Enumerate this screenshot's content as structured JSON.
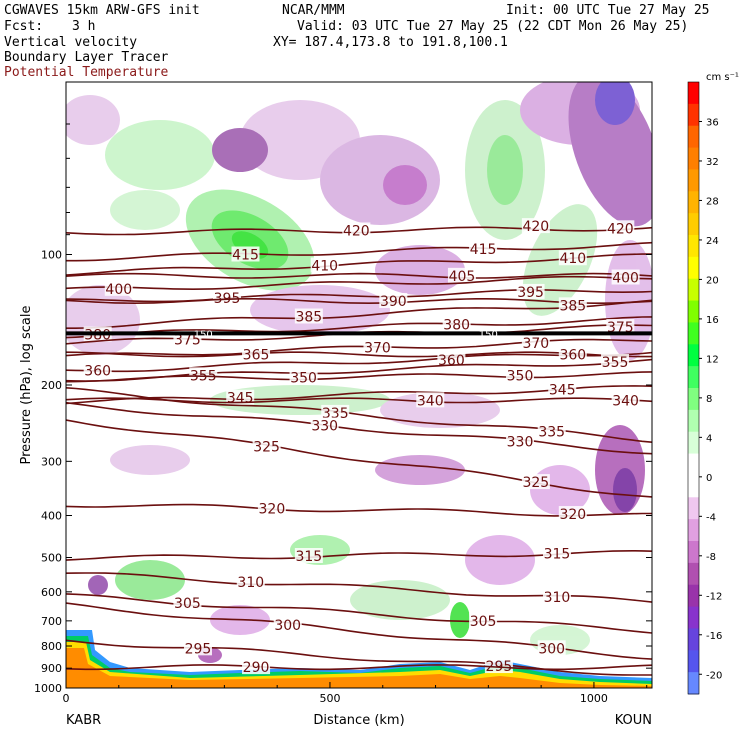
{
  "header": {
    "model": "CGWAVES 15km ARW-GFS init",
    "org": "NCAR/MMM",
    "init": "Init: 00 UTC Tue 27 May 25",
    "fcst_label": "Fcst:",
    "fcst_value": "3 h",
    "valid": "Valid: 03 UTC Tue 27 May 25 (22 CDT Mon 26 May 25)",
    "field1": "Vertical velocity",
    "field2": "Boundary Layer Tracer",
    "field3": "Potential Temperature",
    "xy": "XY= 187.4,173.8 to 191.8,100.1"
  },
  "colors": {
    "isentrope": "#6b0f0f",
    "tropopause": "#000000",
    "terrain": "#ff8c00"
  },
  "chart_data": {
    "type": "heatmap",
    "title": "",
    "xlabel": "Distance (km)",
    "ylabel": "Pressure (hPa), log scale",
    "xlim": [
      0,
      1110
    ],
    "ylim": [
      1000,
      40
    ],
    "y_scale": "log",
    "x_ticks": [
      0,
      500,
      1000
    ],
    "y_ticks": [
      100,
      200,
      300,
      400,
      500,
      600,
      700,
      800,
      900,
      1000
    ],
    "endpoints": {
      "left": "KABR",
      "right": "KOUN"
    },
    "colorbar": {
      "units": "cm s⁻¹",
      "ticks": [
        36,
        32,
        28,
        24,
        20,
        16,
        12,
        8,
        4,
        0,
        -4,
        -8,
        -12,
        -16,
        -20
      ],
      "colors": [
        "#ff0000",
        "#ff3300",
        "#ff6600",
        "#ff7f00",
        "#ff9900",
        "#ffb300",
        "#ffcc00",
        "#ffe600",
        "#ffff00",
        "#c8ff00",
        "#80ff00",
        "#40ff20",
        "#00ff40",
        "#40ff60",
        "#80ff80",
        "#b0ffb0",
        "#d8ffd8",
        "#ffffff",
        "#ffffff",
        "#f0c8f0",
        "#e0a0e0",
        "#cc77cc",
        "#b050b0",
        "#9933aa",
        "#8833cc",
        "#6644dd",
        "#5555ee",
        "#6688ff"
      ]
    },
    "isentropes": [
      {
        "theta": 420,
        "p": 88,
        "labels": [
          [
            550,
            88
          ],
          [
            890,
            86
          ],
          [
            1050,
            87
          ]
        ]
      },
      {
        "theta": 415,
        "p": 100,
        "labels": [
          [
            340,
            100
          ],
          [
            790,
            97
          ]
        ]
      },
      {
        "theta": 410,
        "p": 106,
        "labels": [
          [
            490,
            106
          ],
          [
            960,
            102
          ]
        ]
      },
      {
        "theta": 405,
        "p": 113,
        "labels": [
          [
            750,
            112
          ]
        ]
      },
      {
        "theta": 400,
        "p": 122,
        "labels": [
          [
            100,
            120
          ],
          [
            1060,
            113
          ]
        ]
      },
      {
        "theta": 395,
        "p": 128,
        "labels": [
          [
            305,
            126
          ],
          [
            880,
            122
          ]
        ]
      },
      {
        "theta": 390,
        "p": 130,
        "labels": [
          [
            620,
            128
          ]
        ]
      },
      {
        "theta": 385,
        "p": 140,
        "labels": [
          [
            460,
            139
          ],
          [
            960,
            131
          ]
        ]
      },
      {
        "theta": 380,
        "p": 150,
        "labels": [
          [
            60,
            153
          ],
          [
            740,
            145
          ]
        ]
      },
      {
        "theta": 375,
        "p": 158,
        "labels": [
          [
            230,
            157
          ],
          [
            1050,
            147
          ]
        ]
      },
      {
        "theta": 370,
        "p": 162,
        "labels": [
          [
            590,
            164
          ],
          [
            890,
            160
          ]
        ]
      },
      {
        "theta": 365,
        "p": 170,
        "labels": [
          [
            360,
            170
          ]
        ]
      },
      {
        "theta": 360,
        "p": 180,
        "labels": [
          [
            60,
            185
          ],
          [
            730,
            175
          ],
          [
            960,
            170
          ]
        ]
      },
      {
        "theta": 355,
        "p": 190,
        "labels": [
          [
            260,
            190
          ],
          [
            1040,
            177
          ]
        ]
      },
      {
        "theta": 350,
        "p": 195,
        "labels": [
          [
            450,
            192
          ],
          [
            860,
            190
          ]
        ]
      },
      {
        "theta": 345,
        "p": 213,
        "labels": [
          [
            330,
            214
          ],
          [
            940,
            205
          ]
        ]
      },
      {
        "theta": 340,
        "p": 222,
        "labels": [
          [
            690,
            217
          ],
          [
            1060,
            217
          ]
        ]
      },
      {
        "theta": 335,
        "p": 233,
        "labels": [
          [
            510,
            232
          ],
          [
            920,
            256
          ]
        ]
      },
      {
        "theta": 330,
        "p": 255,
        "labels": [
          [
            490,
            248
          ],
          [
            860,
            270
          ]
        ]
      },
      {
        "theta": 325,
        "p": 285,
        "labels": [
          [
            380,
            277
          ],
          [
            890,
            335
          ]
        ]
      },
      {
        "theta": 320,
        "p": 380,
        "labels": [
          [
            390,
            385
          ],
          [
            960,
            397
          ]
        ]
      },
      {
        "theta": 315,
        "p": 490,
        "labels": [
          [
            460,
            496
          ],
          [
            930,
            490
          ]
        ]
      },
      {
        "theta": 310,
        "p": 580,
        "labels": [
          [
            350,
            570
          ],
          [
            930,
            617
          ]
        ]
      },
      {
        "theta": 305,
        "p": 650,
        "labels": [
          [
            230,
            637
          ],
          [
            790,
            700
          ]
        ]
      },
      {
        "theta": 300,
        "p": 725,
        "labels": [
          [
            420,
            715
          ],
          [
            920,
            810
          ]
        ]
      },
      {
        "theta": 295,
        "p": 820,
        "labels": [
          [
            250,
            810
          ],
          [
            820,
            890
          ]
        ]
      },
      {
        "theta": 290,
        "p": 900,
        "labels": [
          [
            360,
            895
          ]
        ]
      }
    ],
    "tropopause_p": 152,
    "tropopause_label": "150"
  }
}
